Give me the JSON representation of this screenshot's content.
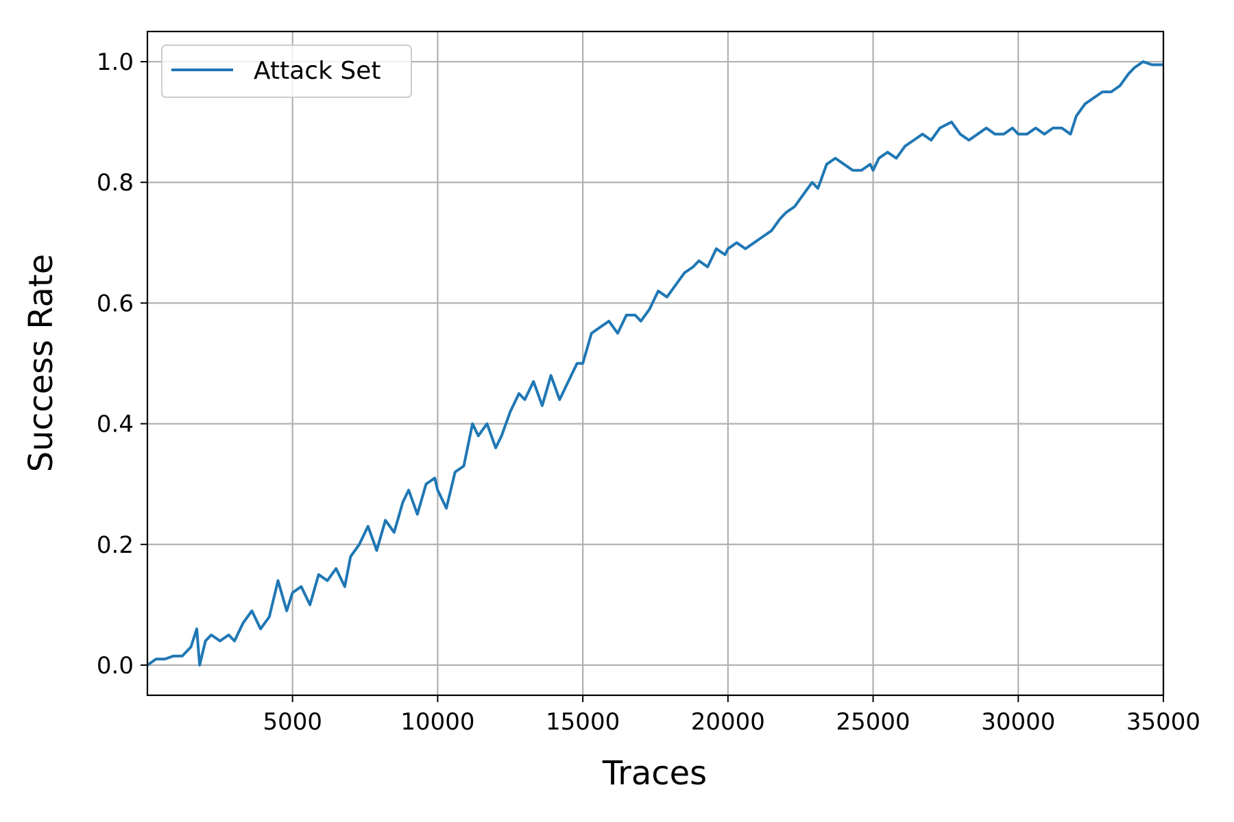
{
  "chart_data": {
    "type": "line",
    "xlabel": "Traces",
    "ylabel": "Success Rate",
    "xlim": [
      0,
      35000
    ],
    "ylim": [
      -0.05,
      1.05
    ],
    "xticks": [
      5000,
      10000,
      15000,
      20000,
      25000,
      30000,
      35000
    ],
    "xtick_labels": [
      "5000",
      "10000",
      "15000",
      "20000",
      "25000",
      "30000",
      "35000"
    ],
    "yticks": [
      0.0,
      0.2,
      0.4,
      0.6,
      0.8,
      1.0
    ],
    "ytick_labels": [
      "0.0",
      "0.2",
      "0.4",
      "0.6",
      "0.8",
      "1.0"
    ],
    "grid": true,
    "legend_position": "top-left",
    "colors": {
      "series": "#1f77b4"
    },
    "series": [
      {
        "name": "Attack Set",
        "x": [
          0,
          300,
          600,
          900,
          1200,
          1500,
          1700,
          1800,
          2000,
          2200,
          2500,
          2800,
          3000,
          3300,
          3600,
          3900,
          4200,
          4500,
          4800,
          5000,
          5300,
          5600,
          5900,
          6200,
          6500,
          6800,
          7000,
          7300,
          7600,
          7900,
          8200,
          8500,
          8800,
          9000,
          9300,
          9600,
          9900,
          10000,
          10300,
          10600,
          10900,
          11200,
          11400,
          11700,
          12000,
          12200,
          12500,
          12800,
          13000,
          13300,
          13600,
          13900,
          14200,
          14500,
          14800,
          15000,
          15300,
          15600,
          15900,
          16200,
          16500,
          16800,
          17000,
          17300,
          17600,
          17900,
          18200,
          18500,
          18800,
          19000,
          19300,
          19600,
          19900,
          20000,
          20300,
          20600,
          20900,
          21200,
          21500,
          21800,
          22000,
          22300,
          22600,
          22900,
          23100,
          23400,
          23700,
          24000,
          24300,
          24600,
          24900,
          25000,
          25200,
          25500,
          25800,
          26100,
          26400,
          26700,
          27000,
          27300,
          27700,
          28000,
          28300,
          28600,
          28900,
          29200,
          29500,
          29800,
          30000,
          30300,
          30600,
          30900,
          31200,
          31500,
          31800,
          32000,
          32300,
          32600,
          32900,
          33200,
          33500,
          33800,
          34000,
          34300,
          34600,
          35000
        ],
        "values": [
          0.0,
          0.01,
          0.01,
          0.015,
          0.015,
          0.03,
          0.06,
          0.0,
          0.04,
          0.05,
          0.04,
          0.05,
          0.04,
          0.07,
          0.09,
          0.06,
          0.08,
          0.14,
          0.09,
          0.12,
          0.13,
          0.1,
          0.15,
          0.14,
          0.16,
          0.13,
          0.18,
          0.2,
          0.23,
          0.19,
          0.24,
          0.22,
          0.27,
          0.29,
          0.25,
          0.3,
          0.31,
          0.29,
          0.26,
          0.32,
          0.33,
          0.4,
          0.38,
          0.4,
          0.36,
          0.38,
          0.42,
          0.45,
          0.44,
          0.47,
          0.43,
          0.48,
          0.44,
          0.47,
          0.5,
          0.5,
          0.55,
          0.56,
          0.57,
          0.55,
          0.58,
          0.58,
          0.57,
          0.59,
          0.62,
          0.61,
          0.63,
          0.65,
          0.66,
          0.67,
          0.66,
          0.69,
          0.68,
          0.69,
          0.7,
          0.69,
          0.7,
          0.71,
          0.72,
          0.74,
          0.75,
          0.76,
          0.78,
          0.8,
          0.79,
          0.83,
          0.84,
          0.83,
          0.82,
          0.82,
          0.83,
          0.82,
          0.84,
          0.85,
          0.84,
          0.86,
          0.87,
          0.88,
          0.87,
          0.89,
          0.9,
          0.88,
          0.87,
          0.88,
          0.89,
          0.88,
          0.88,
          0.89,
          0.88,
          0.88,
          0.89,
          0.88,
          0.89,
          0.89,
          0.88,
          0.91,
          0.93,
          0.94,
          0.95,
          0.95,
          0.96,
          0.98,
          0.99,
          1.0,
          0.995,
          0.995
        ]
      }
    ]
  }
}
